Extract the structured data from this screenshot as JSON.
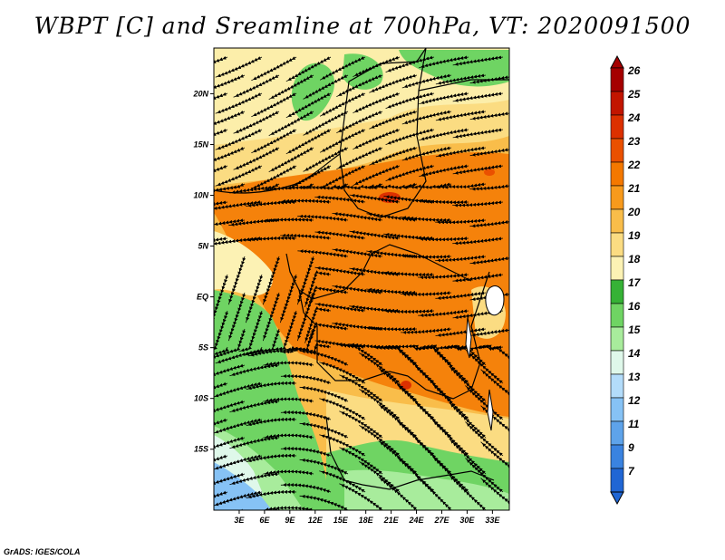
{
  "title": "WBPT [C] and Sreamline at 700hPa, VT: 2020091500",
  "credit": "GrADS: IGES/COLA",
  "map": {
    "variable": "Wet-bulb potential temperature [C]",
    "level": "700hPa",
    "valid_time": "2020091500",
    "lat_range": [
      -21,
      24.5
    ],
    "lon_range": [
      0,
      35
    ],
    "lat_ticks": [
      "20N",
      "15N",
      "10N",
      "5N",
      "EQ",
      "5S",
      "10S",
      "15S"
    ],
    "lat_values": [
      20,
      15,
      10,
      5,
      0,
      -5,
      -10,
      -15
    ],
    "lon_ticks": [
      "3E",
      "6E",
      "9E",
      "12E",
      "15E",
      "18E",
      "21E",
      "24E",
      "27E",
      "30E",
      "33E"
    ],
    "lon_values": [
      3,
      6,
      9,
      12,
      15,
      18,
      21,
      24,
      27,
      30,
      33
    ]
  },
  "colorbar": {
    "labels": [
      "26",
      "25",
      "24",
      "23",
      "22",
      "21",
      "20",
      "19",
      "18",
      "17",
      "16",
      "15",
      "14",
      "13",
      "12",
      "11",
      "9",
      "7"
    ],
    "colors": [
      "#a50000",
      "#c21500",
      "#dc3000",
      "#ea5000",
      "#f47800",
      "#f89a1c",
      "#f9bd4a",
      "#fbdc82",
      "#fcf2b4",
      "#36b236",
      "#6fd463",
      "#a8ec9c",
      "#dff8ea",
      "#b3dcfa",
      "#86c2f5",
      "#5ea3ea",
      "#3a83e0",
      "#2066d4"
    ]
  }
}
